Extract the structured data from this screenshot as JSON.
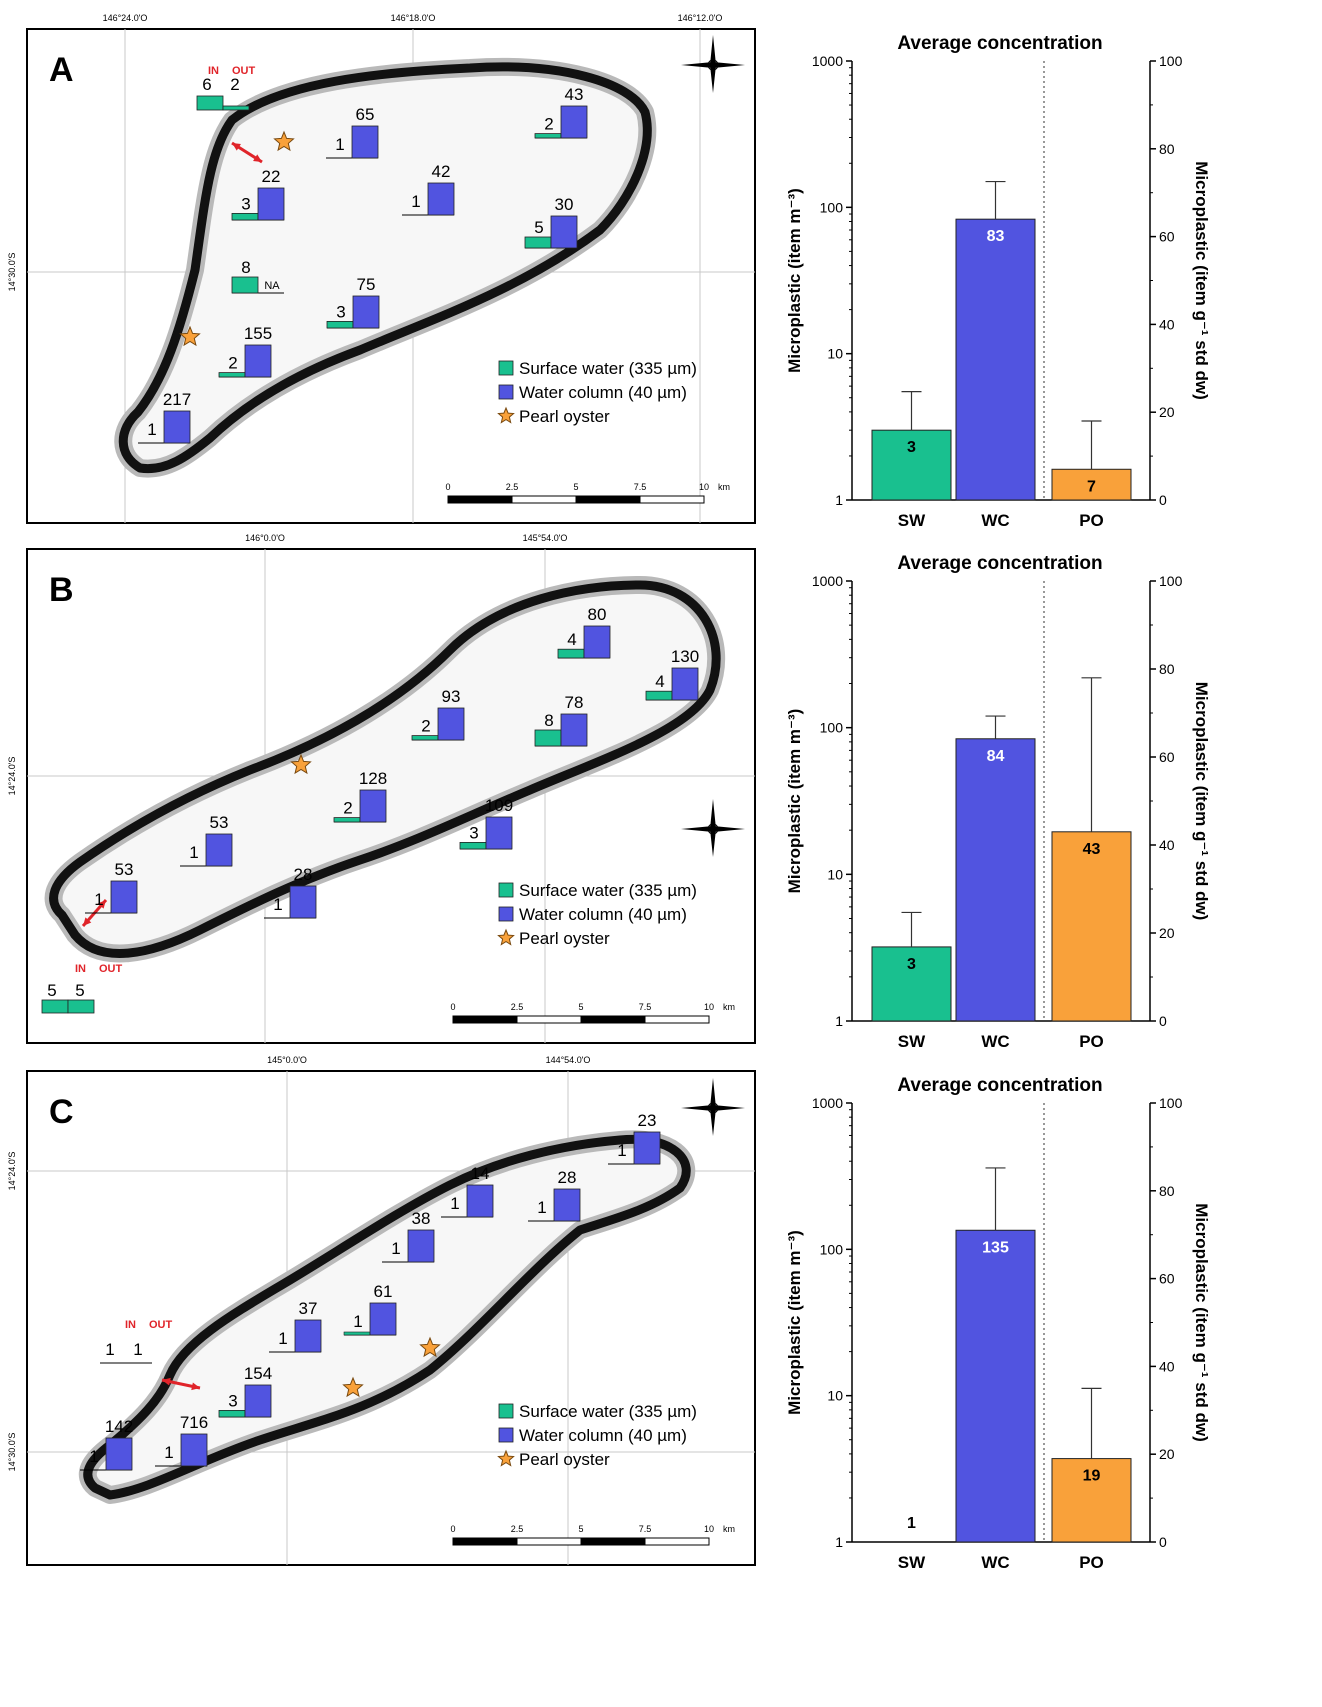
{
  "legend": {
    "surface_water": "Surface water (335 µm)",
    "water_column": "Water column (40 µm)",
    "pearl_oyster": "Pearl oyster"
  },
  "colors": {
    "surface_water": "#19c08f",
    "water_column": "#5154e0",
    "pearl_oyster": "#f9a13a",
    "arrow": "#e0242a",
    "in_out_text": "#e0242a"
  },
  "scale_bar": {
    "ticks": [
      "0",
      "2.5",
      "5",
      "7.5",
      "10"
    ],
    "unit": "km"
  },
  "in_label": "IN",
  "out_label": "OUT",
  "panels": [
    {
      "letter": "A",
      "lon_labels": [
        "146°24.0'O",
        "146°18.0'O",
        "146°12.0'O"
      ],
      "lat_labels": [
        "14°30.0'S"
      ],
      "inout_values": [
        "6",
        "2"
      ],
      "stations": [
        {
          "sw": "3",
          "wc": "22"
        },
        {
          "sw": "1",
          "wc": "65"
        },
        {
          "sw": "2",
          "wc": "43"
        },
        {
          "sw": "1",
          "wc": "42"
        },
        {
          "sw": "5",
          "wc": "30"
        },
        {
          "sw": "8",
          "wc": "NA"
        },
        {
          "sw": "3",
          "wc": "75"
        },
        {
          "sw": "2",
          "wc": "155"
        },
        {
          "sw": "1",
          "wc": "217"
        }
      ]
    },
    {
      "letter": "B",
      "lon_labels": [
        "146°0.0'O",
        "145°54.0'O"
      ],
      "lat_labels": [
        "14°24.0'S"
      ],
      "inout_values": [
        "5",
        "5"
      ],
      "stations": [
        {
          "sw": "4",
          "wc": "80"
        },
        {
          "sw": "4",
          "wc": "130"
        },
        {
          "sw": "2",
          "wc": "93"
        },
        {
          "sw": "8",
          "wc": "78"
        },
        {
          "sw": "2",
          "wc": "128"
        },
        {
          "sw": "3",
          "wc": "109"
        },
        {
          "sw": "1",
          "wc": "53"
        },
        {
          "sw": "1",
          "wc": "53"
        },
        {
          "sw": "1",
          "wc": "28"
        }
      ]
    },
    {
      "letter": "C",
      "lon_labels": [
        "145°0.0'O",
        "144°54.0'O"
      ],
      "lat_labels": [
        "14°24.0'S",
        "14°30.0'S"
      ],
      "inout_values": [
        "1",
        "1"
      ],
      "stations": [
        {
          "sw": "1",
          "wc": "23"
        },
        {
          "sw": "1",
          "wc": "14"
        },
        {
          "sw": "1",
          "wc": "28"
        },
        {
          "sw": "1",
          "wc": "38"
        },
        {
          "sw": "1",
          "wc": "61"
        },
        {
          "sw": "1",
          "wc": "37"
        },
        {
          "sw": "3",
          "wc": "154"
        },
        {
          "sw": "1",
          "wc": "142"
        },
        {
          "sw": "1",
          "wc": "716"
        }
      ]
    }
  ],
  "chart_data": [
    {
      "type": "bar",
      "title": "Average concentration",
      "ylabel_left": "Microplastic (item m⁻³)",
      "ylabel_right": "Microplastic (item g⁻¹ std dw)",
      "categories": [
        "SW",
        "WC",
        "PO"
      ],
      "values": [
        3,
        83,
        7
      ],
      "value_labels": [
        "3",
        "83",
        "7"
      ],
      "error_upper": [
        5.5,
        150,
        18
      ],
      "left_axis": {
        "scale": "log",
        "ylim": [
          1,
          1000
        ],
        "ticks": [
          "1",
          "10",
          "100",
          "1000"
        ]
      },
      "right_axis": {
        "scale": "linear",
        "ylim": [
          0,
          100
        ],
        "ticks": [
          "0",
          "20",
          "40",
          "60",
          "80",
          "100"
        ]
      },
      "axis_per_category": [
        "left",
        "left",
        "right"
      ]
    },
    {
      "type": "bar",
      "title": "Average concentration",
      "ylabel_left": "Microplastic (item m⁻³)",
      "ylabel_right": "Microplastic (item g⁻¹ std dw)",
      "categories": [
        "SW",
        "WC",
        "PO"
      ],
      "values": [
        3.2,
        84,
        43
      ],
      "value_labels": [
        "3",
        "84",
        "43"
      ],
      "error_upper": [
        5.5,
        120,
        78
      ],
      "left_axis": {
        "scale": "log",
        "ylim": [
          1,
          1000
        ],
        "ticks": [
          "1",
          "10",
          "100",
          "1000"
        ]
      },
      "right_axis": {
        "scale": "linear",
        "ylim": [
          0,
          100
        ],
        "ticks": [
          "0",
          "20",
          "40",
          "60",
          "80",
          "100"
        ]
      },
      "axis_per_category": [
        "left",
        "left",
        "right"
      ]
    },
    {
      "type": "bar",
      "title": "Average concentration",
      "ylabel_left": "Microplastic (item m⁻³)",
      "ylabel_right": "Microplastic (item g⁻¹ std dw)",
      "categories": [
        "SW",
        "WC",
        "PO"
      ],
      "values": [
        1,
        135,
        19
      ],
      "value_labels": [
        "1",
        "135",
        "19"
      ],
      "error_upper": [
        null,
        360,
        35
      ],
      "left_axis": {
        "scale": "log",
        "ylim": [
          1,
          1000
        ],
        "ticks": [
          "1",
          "10",
          "100",
          "1000"
        ]
      },
      "right_axis": {
        "scale": "linear",
        "ylim": [
          0,
          100
        ],
        "ticks": [
          "0",
          "20",
          "40",
          "60",
          "80",
          "100"
        ]
      },
      "axis_per_category": [
        "left",
        "left",
        "right"
      ]
    }
  ]
}
